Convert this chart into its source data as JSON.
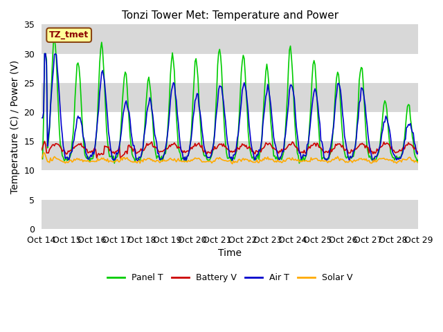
{
  "title": "Tonzi Tower Met: Temperature and Power",
  "xlabel": "Time",
  "ylabel": "Temperature (C) / Power (V)",
  "dataset_label": "TZ_tmet",
  "ylim": [
    0,
    35
  ],
  "yticks": [
    0,
    5,
    10,
    15,
    20,
    25,
    30,
    35
  ],
  "xtick_labels": [
    "Oct 14",
    "Oct 15",
    "Oct 16",
    "Oct 17",
    "Oct 18",
    "Oct 19",
    "Oct 20",
    "Oct 21",
    "Oct 22",
    "Oct 23",
    "Oct 24",
    "Oct 25",
    "Oct 26",
    "Oct 27",
    "Oct 28",
    "Oct 29"
  ],
  "n_days": 16,
  "panel_color": "#00cc00",
  "battery_color": "#cc0000",
  "air_color": "#0000cc",
  "solar_color": "#ffaa00",
  "bg_color": "#ffffff",
  "plot_bg_color": "#e8e8e8",
  "band1_color": "#ffffff",
  "band2_color": "#d8d8d8",
  "legend_labels": [
    "Panel T",
    "Battery V",
    "Air T",
    "Solar V"
  ],
  "title_fontsize": 11,
  "axis_fontsize": 10,
  "tick_fontsize": 9
}
